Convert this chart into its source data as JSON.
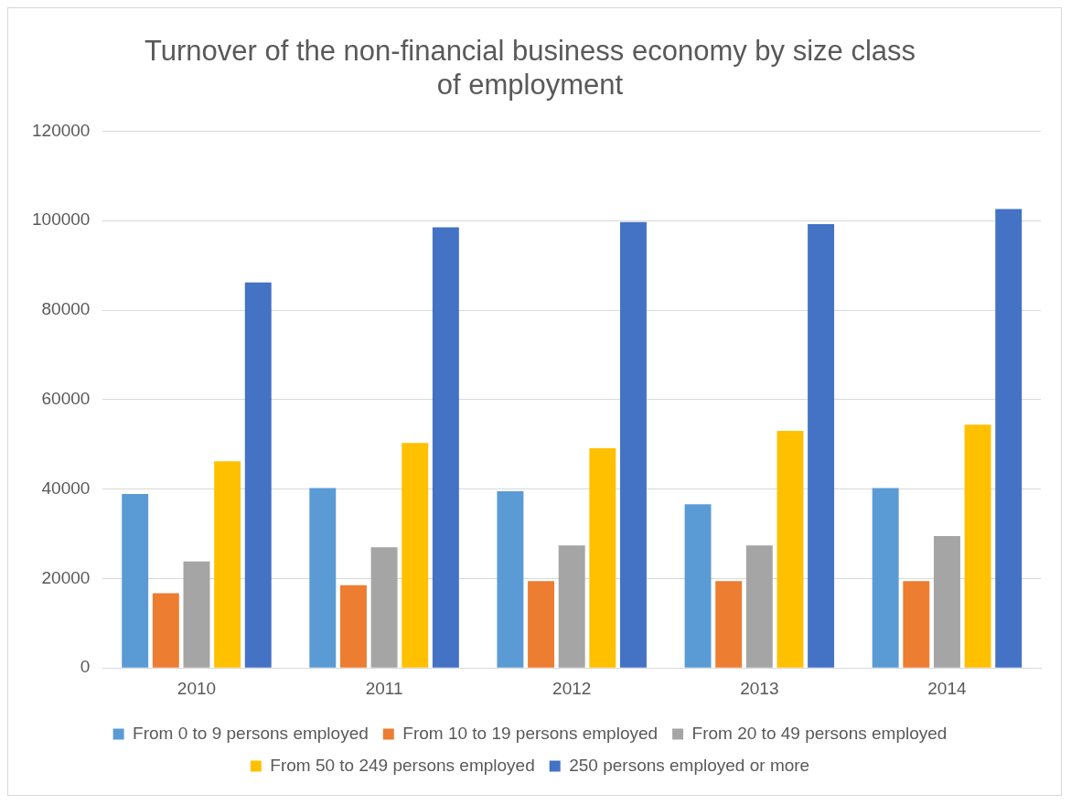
{
  "chart_data": {
    "type": "bar",
    "title": "Turnover of the non-financial business economy by size class of employment",
    "categories": [
      "2010",
      "2011",
      "2012",
      "2013",
      "2014"
    ],
    "series": [
      {
        "name": "From 0 to 9 persons employed",
        "color": "#5b9bd5",
        "values": [
          38900,
          40200,
          39500,
          36600,
          40200
        ]
      },
      {
        "name": "From 10 to 19 persons employed",
        "color": "#ed7d31",
        "values": [
          16700,
          18500,
          19400,
          19400,
          19400
        ]
      },
      {
        "name": "From 20 to 49 persons employed",
        "color": "#a5a5a5",
        "values": [
          23800,
          27000,
          27400,
          27400,
          29500
        ]
      },
      {
        "name": "From 50 to 249 persons employed",
        "color": "#ffc000",
        "values": [
          46200,
          50300,
          49100,
          53000,
          54400
        ]
      },
      {
        "name": "250 persons employed or more",
        "color": "#4472c4",
        "values": [
          86200,
          98500,
          99700,
          99200,
          102600
        ]
      }
    ],
    "ylim": [
      0,
      120000
    ],
    "yticks": [
      0,
      20000,
      40000,
      60000,
      80000,
      100000,
      120000
    ],
    "grid": "y",
    "legend": "bottom"
  }
}
